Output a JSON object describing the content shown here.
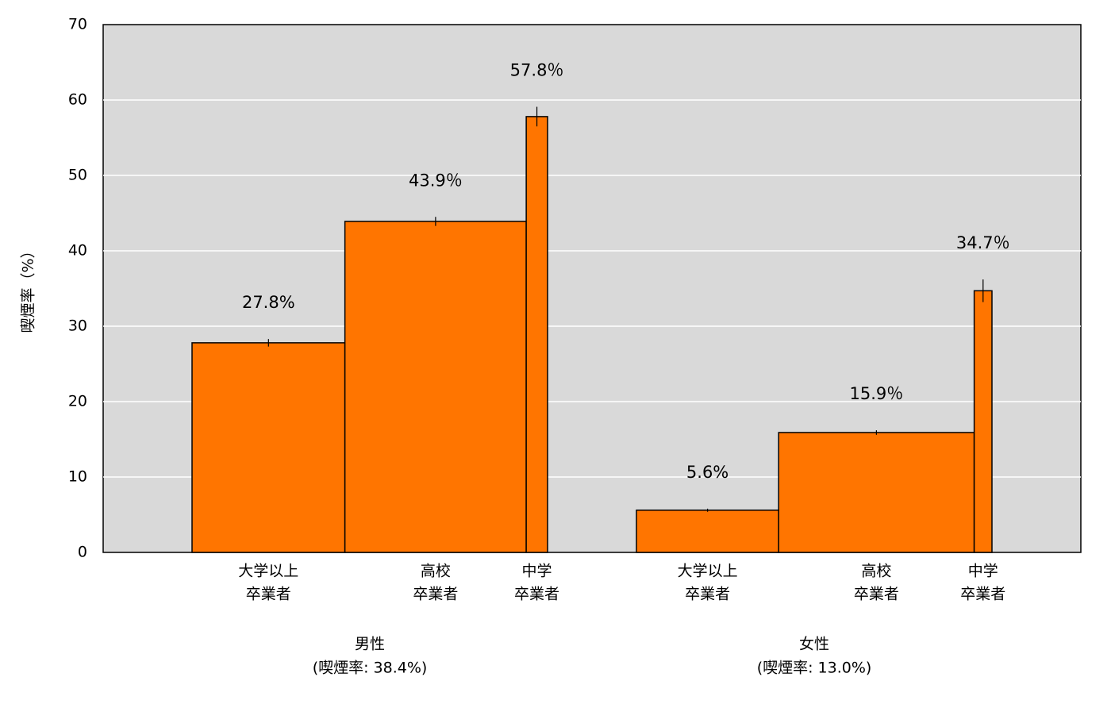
{
  "chart_data": {
    "type": "bar",
    "ylabel": "喫煙率（%）",
    "ylim": [
      0,
      70
    ],
    "yticks": [
      0,
      10,
      20,
      30,
      40,
      50,
      60,
      70
    ],
    "grid": true,
    "color": "#ff7500",
    "groups": [
      {
        "name": "男性",
        "subtitle": "(喫煙率: 38.4%)",
        "categories": [
          [
            "大学以上",
            "卒業者"
          ],
          [
            "高校",
            "卒業者"
          ],
          [
            "中学",
            "卒業者"
          ]
        ],
        "values": [
          27.8,
          43.9,
          57.8
        ],
        "value_labels": [
          "27.8%",
          "43.9％",
          "57.8％"
        ],
        "errors": [
          0.5,
          0.6,
          1.3
        ],
        "widths": [
          43,
          51,
          6
        ]
      },
      {
        "name": "女性",
        "subtitle": "(喫煙率: 13.0%)",
        "categories": [
          [
            "大学以上",
            "卒業者"
          ],
          [
            "高校",
            "卒業者"
          ],
          [
            "中学",
            "卒業者"
          ]
        ],
        "values": [
          5.6,
          15.9,
          34.7
        ],
        "value_labels": [
          "5.6%",
          "15.9％",
          "34.7％"
        ],
        "errors": [
          0.2,
          0.3,
          1.5
        ],
        "widths": [
          40,
          55,
          5
        ]
      }
    ]
  }
}
